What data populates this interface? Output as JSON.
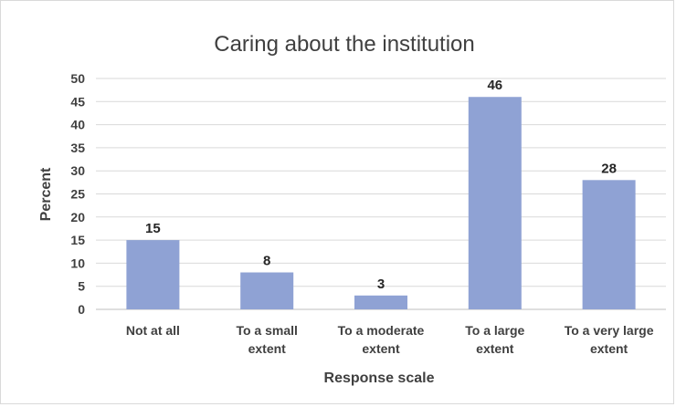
{
  "chart_data": {
    "type": "bar",
    "title": "Caring about the institution",
    "xlabel": "Response scale",
    "ylabel": "Percent",
    "categories": [
      [
        "Not at all"
      ],
      [
        "To a small",
        "extent"
      ],
      [
        "To a moderate",
        "extent"
      ],
      [
        "To a large",
        "extent"
      ],
      [
        "To a very large",
        "extent"
      ]
    ],
    "values": [
      15,
      8,
      3,
      46,
      28
    ],
    "data_labels": [
      "15",
      "8",
      "3",
      "46",
      "28"
    ],
    "ylim": [
      0,
      50
    ],
    "yticks": [
      0,
      5,
      10,
      15,
      20,
      25,
      30,
      35,
      40,
      45,
      50
    ],
    "grid": true,
    "legend": "none",
    "colors": {
      "bar": "#8fa2d4",
      "grid": "#d9d9d9",
      "text": "#404040"
    }
  }
}
